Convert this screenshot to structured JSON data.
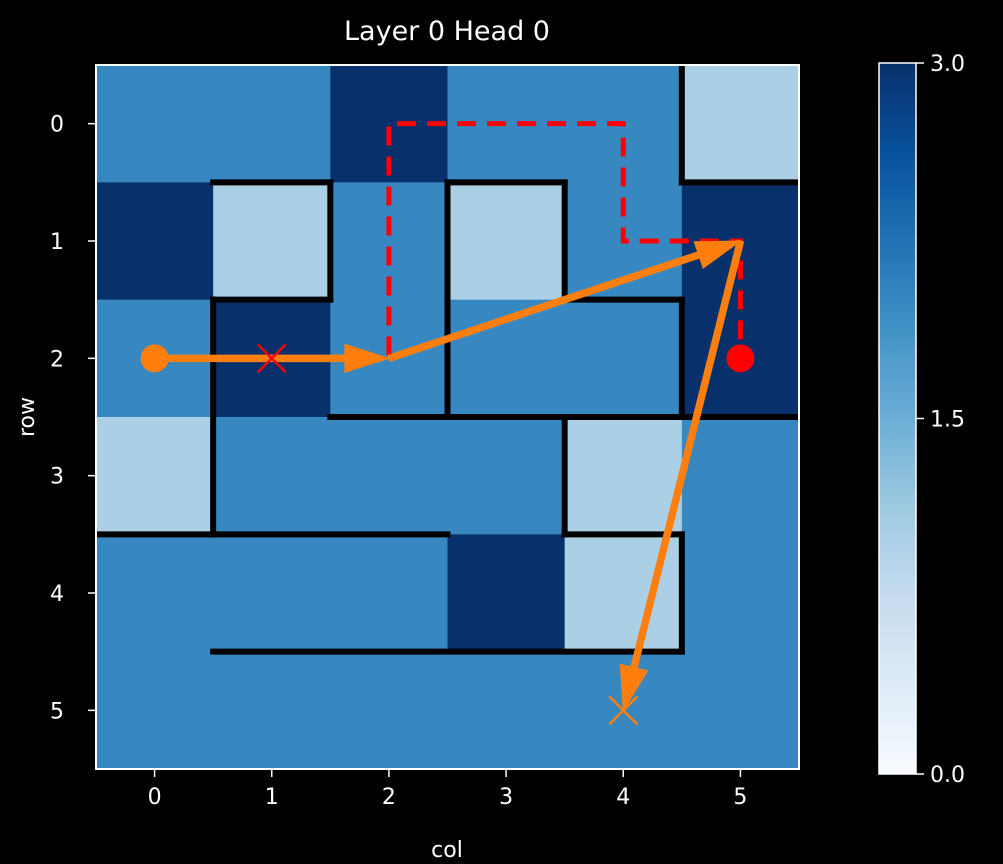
{
  "chart_data": {
    "type": "heatmap",
    "title": "Layer 0 Head 0",
    "xlabel": "col",
    "ylabel": "row",
    "x_ticks": [
      "0",
      "1",
      "2",
      "3",
      "4",
      "5"
    ],
    "y_ticks": [
      "0",
      "1",
      "2",
      "3",
      "4",
      "5"
    ],
    "xlim": [
      -0.5,
      5.5
    ],
    "ylim": [
      5.5,
      -0.5
    ],
    "grid": [
      [
        2,
        2,
        3,
        2,
        2,
        1
      ],
      [
        3,
        1,
        2,
        1,
        2,
        3
      ],
      [
        2,
        3,
        2,
        2,
        2,
        3
      ],
      [
        1,
        2,
        2,
        2,
        1,
        2
      ],
      [
        2,
        2,
        2,
        3,
        1,
        2
      ],
      [
        2,
        2,
        2,
        2,
        2,
        2
      ]
    ],
    "colorbar": {
      "vmin": 0.0,
      "vmax": 3.0,
      "ticks": [
        "0.0",
        "1.5",
        "3.0"
      ],
      "colormap": "Blues"
    },
    "walls": [
      {
        "x1": 4.5,
        "y1": -0.5,
        "x2": 4.5,
        "y2": 0.5
      },
      {
        "x1": 0.5,
        "y1": 0.5,
        "x2": 1.5,
        "y2": 0.5
      },
      {
        "x1": 2.5,
        "y1": 0.5,
        "x2": 3.5,
        "y2": 0.5
      },
      {
        "x1": 4.5,
        "y1": 0.5,
        "x2": 5.5,
        "y2": 0.5
      },
      {
        "x1": 1.5,
        "y1": 0.5,
        "x2": 1.5,
        "y2": 1.5
      },
      {
        "x1": 2.5,
        "y1": 0.5,
        "x2": 2.5,
        "y2": 2.5
      },
      {
        "x1": 3.5,
        "y1": 0.5,
        "x2": 3.5,
        "y2": 1.5
      },
      {
        "x1": 0.5,
        "y1": 1.5,
        "x2": 1.5,
        "y2": 1.5
      },
      {
        "x1": 3.5,
        "y1": 1.5,
        "x2": 4.5,
        "y2": 1.5
      },
      {
        "x1": 0.5,
        "y1": 1.5,
        "x2": 0.5,
        "y2": 3.5
      },
      {
        "x1": 4.5,
        "y1": 1.5,
        "x2": 4.5,
        "y2": 2.5
      },
      {
        "x1": 1.5,
        "y1": 2.5,
        "x2": 5.5,
        "y2": 2.5
      },
      {
        "x1": 3.5,
        "y1": 2.5,
        "x2": 3.5,
        "y2": 3.5
      },
      {
        "x1": -0.5,
        "y1": 3.5,
        "x2": 2.5,
        "y2": 3.5
      },
      {
        "x1": 3.5,
        "y1": 3.5,
        "x2": 4.5,
        "y2": 3.5
      },
      {
        "x1": 4.5,
        "y1": 3.5,
        "x2": 4.5,
        "y2": 4.5
      },
      {
        "x1": 0.5,
        "y1": 4.5,
        "x2": 4.5,
        "y2": 4.5
      }
    ],
    "shortest_path": {
      "color": "#ff0000",
      "points": [
        [
          1,
          2
        ],
        [
          2,
          2
        ],
        [
          2,
          0
        ],
        [
          4,
          0
        ],
        [
          4,
          1
        ],
        [
          5,
          1
        ],
        [
          5,
          2
        ]
      ]
    },
    "attention_path": {
      "color": "#ff7f0e",
      "points": [
        [
          0,
          2
        ],
        [
          2,
          2
        ],
        [
          5,
          1
        ],
        [
          4,
          5
        ]
      ]
    },
    "markers": [
      {
        "type": "circle",
        "x": 0,
        "y": 2,
        "color": "#ff7f0e"
      },
      {
        "type": "x",
        "x": 1,
        "y": 2,
        "color": "#ff0000"
      },
      {
        "type": "circle",
        "x": 5,
        "y": 2,
        "color": "#ff0000"
      },
      {
        "type": "x",
        "x": 4,
        "y": 5,
        "color": "#ff7f0e"
      }
    ]
  }
}
